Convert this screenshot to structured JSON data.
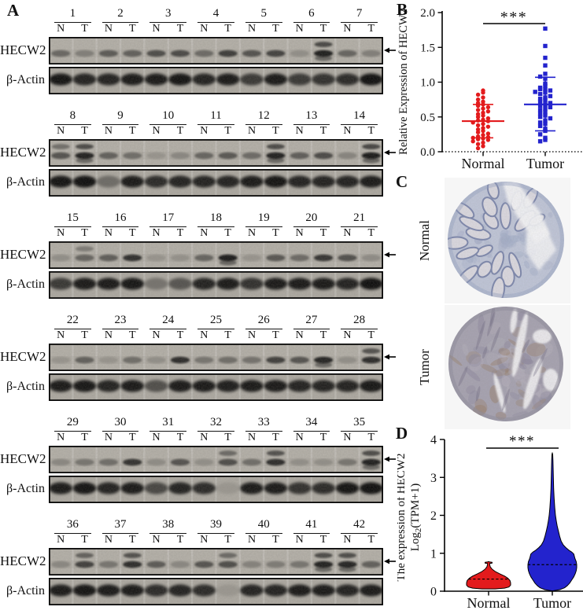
{
  "panels": {
    "a": "A",
    "b": "B",
    "c": "C",
    "d": "D"
  },
  "panelA": {
    "protein_label": "HECW2",
    "loading_label": "β-Actin",
    "lane_n": "N",
    "lane_t": "T",
    "band_arrow_icon": "left-arrow-icon",
    "rows": [
      {
        "samples": [
          "1",
          "2",
          "3",
          "4",
          "5",
          "6",
          "7"
        ],
        "hecw2": [
          0.4,
          0.22,
          0.5,
          0.45,
          0.6,
          0.62,
          0.38,
          0.72,
          0.55,
          0.68,
          0.1,
          0.95,
          0.42,
          0.22
        ],
        "hecw2_upper": [
          11
        ],
        "actin": [
          0.95,
          0.85,
          0.85,
          0.9,
          0.9,
          0.95,
          0.85,
          0.9,
          0.7,
          0.9,
          0.7,
          0.75,
          0.8,
          0.97
        ]
      },
      {
        "samples": [
          "8",
          "9",
          "10",
          "11",
          "12",
          "13",
          "14"
        ],
        "hecw2": [
          0.55,
          0.92,
          0.45,
          0.35,
          0.06,
          0.15,
          0.42,
          0.52,
          0.38,
          0.92,
          0.48,
          0.62,
          0.18,
          0.97
        ],
        "hecw2_upper": [
          0,
          1,
          9,
          13
        ],
        "actin": [
          0.95,
          0.97,
          0.35,
          0.9,
          0.8,
          0.85,
          0.85,
          0.85,
          0.9,
          0.95,
          0.85,
          0.85,
          0.85,
          0.9
        ]
      },
      {
        "samples": [
          "15",
          "16",
          "17",
          "18",
          "19",
          "20",
          "21"
        ],
        "hecw2": [
          0.1,
          0.42,
          0.48,
          0.82,
          0.05,
          0.08,
          0.42,
          0.97,
          0.06,
          0.52,
          0.38,
          0.78,
          0.58,
          0.12
        ],
        "hecw2_upper": [
          1
        ],
        "actin": [
          0.7,
          0.9,
          0.9,
          0.92,
          0.3,
          0.5,
          0.85,
          0.9,
          0.75,
          0.9,
          0.9,
          0.9,
          0.85,
          0.97
        ]
      },
      {
        "samples": [
          "22",
          "23",
          "24",
          "25",
          "26",
          "27",
          "28"
        ],
        "hecw2": [
          0.05,
          0.45,
          0.06,
          0.35,
          0.1,
          0.85,
          0.3,
          0.35,
          0.32,
          0.7,
          0.55,
          0.9,
          0.1,
          0.85
        ],
        "hecw2_upper": [
          13
        ],
        "actin": [
          0.9,
          0.92,
          0.85,
          0.9,
          0.55,
          0.9,
          0.9,
          0.88,
          0.9,
          0.9,
          0.85,
          0.85,
          0.85,
          0.92
        ]
      },
      {
        "samples": [
          "29",
          "30",
          "31",
          "32",
          "33",
          "34",
          "35"
        ],
        "hecw2": [
          0.15,
          0.3,
          0.35,
          0.8,
          0.12,
          0.55,
          0.1,
          0.6,
          0.35,
          0.85,
          0.1,
          0.1,
          0.3,
          0.92
        ],
        "hecw2_upper": [
          7,
          9,
          13
        ],
        "actin": [
          0.9,
          0.95,
          0.85,
          0.9,
          0.6,
          0.85,
          0.8,
          0.05,
          0.9,
          0.9,
          0.75,
          0.8,
          0.95,
          0.97
        ]
      },
      {
        "samples": [
          "36",
          "37",
          "38",
          "39",
          "40",
          "41",
          "42"
        ],
        "hecw2": [
          0.15,
          0.7,
          0.3,
          0.85,
          0.5,
          0.15,
          0.55,
          0.6,
          0.2,
          0.25,
          0.3,
          0.92,
          0.9,
          0.45
        ],
        "hecw2_upper": [
          1,
          3,
          7,
          11,
          12
        ],
        "actin": [
          0.9,
          0.95,
          0.9,
          0.9,
          0.8,
          0.85,
          0.8,
          0.05,
          0.85,
          0.85,
          0.9,
          0.9,
          0.85,
          0.9
        ]
      }
    ]
  },
  "panelC": {
    "images": [
      {
        "label": "Normal",
        "base_color": "#c0c6d8",
        "gland_fill": "#dbd9e0",
        "gland_stroke": "#7f89ad",
        "mottle": "#a6afc9",
        "bg": "#f6f6f6"
      },
      {
        "label": "Tumor",
        "base_color": "#a8a4b2",
        "mottle1": "#8f8aa0",
        "mottle2": "#9b8472",
        "mottle3": "#b7b2bd",
        "bg": "#f6f6f6"
      }
    ]
  },
  "chart_data": [
    {
      "id": "B",
      "type": "scatter",
      "ylabel": "Relative Expression of HECW2",
      "ylim": [
        0,
        2
      ],
      "yticks": [
        0,
        0.5,
        1,
        1.5,
        2
      ],
      "ytick_labels": [
        "0.0",
        "0.5",
        "1.0",
        "1.5",
        "2.0"
      ],
      "categories": [
        "Normal",
        "Tumor"
      ],
      "significance": "***",
      "grid": false,
      "legend_position": "none",
      "series": [
        {
          "name": "Normal",
          "marker": "circle",
          "color": "#e31b1d",
          "mean": 0.44,
          "err_low": 0.2,
          "err_high": 0.68,
          "values": [
            0.88,
            0.85,
            0.82,
            0.78,
            0.75,
            0.72,
            0.7,
            0.68,
            0.66,
            0.64,
            0.62,
            0.6,
            0.58,
            0.56,
            0.54,
            0.52,
            0.5,
            0.48,
            0.46,
            0.45,
            0.44,
            0.42,
            0.4,
            0.38,
            0.36,
            0.34,
            0.32,
            0.3,
            0.28,
            0.26,
            0.24,
            0.22,
            0.21,
            0.2,
            0.19,
            0.18,
            0.17,
            0.15,
            0.13,
            0.11,
            0.08,
            0.05
          ]
        },
        {
          "name": "Tumor",
          "marker": "square",
          "color": "#2323cd",
          "mean": 0.68,
          "err_low": 0.3,
          "err_high": 1.07,
          "values": [
            1.77,
            1.52,
            1.35,
            1.24,
            1.12,
            1.08,
            1.05,
            0.98,
            0.95,
            0.92,
            0.9,
            0.9,
            0.88,
            0.86,
            0.85,
            0.83,
            0.8,
            0.78,
            0.76,
            0.74,
            0.72,
            0.7,
            0.68,
            0.66,
            0.64,
            0.62,
            0.6,
            0.57,
            0.55,
            0.52,
            0.5,
            0.48,
            0.45,
            0.42,
            0.4,
            0.37,
            0.33,
            0.3,
            0.25,
            0.2,
            0.17,
            0.15
          ]
        }
      ]
    },
    {
      "id": "D",
      "type": "violin",
      "ylabel_line1": "The expression of HECW2",
      "ylabel_pre": "Log",
      "ylabel_sub": "2",
      "ylabel_post": "(TPM+1)",
      "ylim": [
        0,
        4
      ],
      "yticks": [
        0,
        1,
        2,
        3,
        4
      ],
      "ytick_labels": [
        "0",
        "1",
        "2",
        "3",
        "4"
      ],
      "categories": [
        "Normal",
        "Tumor"
      ],
      "significance": "***",
      "series": [
        {
          "name": "Normal",
          "color": "#e31b1d",
          "median": 0.32,
          "range": [
            0.06,
            0.78
          ],
          "profile": [
            [
              0.06,
              0.3
            ],
            [
              0.08,
              0.72
            ],
            [
              0.11,
              0.92
            ],
            [
              0.16,
              1.0
            ],
            [
              0.22,
              1.0
            ],
            [
              0.28,
              0.97
            ],
            [
              0.34,
              0.88
            ],
            [
              0.4,
              0.72
            ],
            [
              0.46,
              0.5
            ],
            [
              0.52,
              0.3
            ],
            [
              0.58,
              0.16
            ],
            [
              0.64,
              0.08
            ],
            [
              0.7,
              0.05
            ],
            [
              0.73,
              0.05
            ],
            [
              0.74,
              0.16
            ],
            [
              0.76,
              0.16
            ],
            [
              0.77,
              0.04
            ],
            [
              0.78,
              0.02
            ]
          ]
        },
        {
          "name": "Tumor",
          "color": "#2323cd",
          "median": 0.7,
          "range": [
            0.01,
            3.65
          ],
          "profile": [
            [
              0.01,
              0.03
            ],
            [
              0.04,
              0.3
            ],
            [
              0.09,
              0.5
            ],
            [
              0.15,
              0.62
            ],
            [
              0.22,
              0.72
            ],
            [
              0.3,
              0.8
            ],
            [
              0.38,
              0.88
            ],
            [
              0.46,
              0.94
            ],
            [
              0.54,
              0.98
            ],
            [
              0.62,
              1.0
            ],
            [
              0.7,
              1.0
            ],
            [
              0.78,
              0.98
            ],
            [
              0.86,
              0.93
            ],
            [
              0.93,
              0.9
            ],
            [
              0.98,
              0.88
            ],
            [
              1.03,
              0.8
            ],
            [
              1.08,
              0.68
            ],
            [
              1.15,
              0.55
            ],
            [
              1.22,
              0.45
            ],
            [
              1.32,
              0.36
            ],
            [
              1.45,
              0.3
            ],
            [
              1.58,
              0.25
            ],
            [
              1.72,
              0.2
            ],
            [
              1.86,
              0.16
            ],
            [
              2.0,
              0.13
            ],
            [
              2.2,
              0.1
            ],
            [
              2.45,
              0.075
            ],
            [
              2.7,
              0.055
            ],
            [
              2.95,
              0.045
            ],
            [
              3.2,
              0.035
            ],
            [
              3.45,
              0.025
            ],
            [
              3.6,
              0.015
            ],
            [
              3.65,
              0.0
            ]
          ]
        }
      ]
    }
  ]
}
